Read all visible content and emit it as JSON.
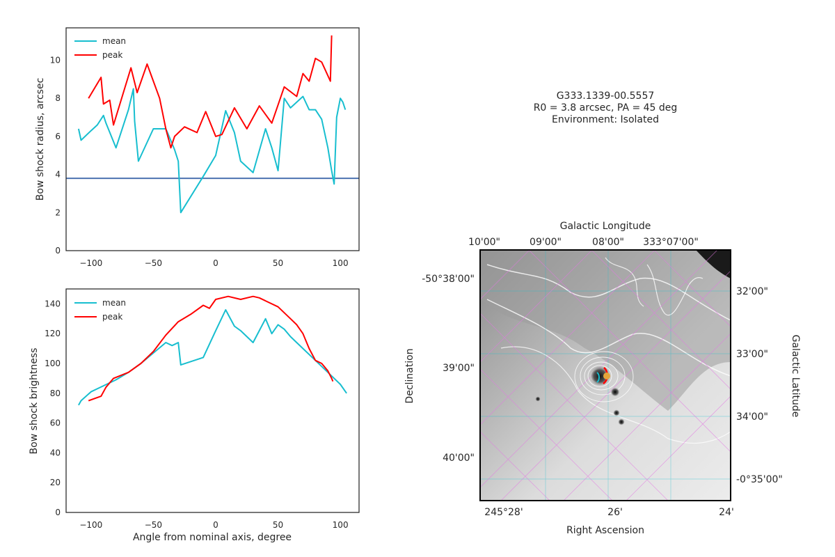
{
  "chart_data": [
    {
      "type": "line",
      "ylabel": "Bow shock radius, arcsec",
      "xlabel": "",
      "xlim": [
        -120,
        115
      ],
      "ylim": [
        0,
        11.7
      ],
      "xticks": [
        -100,
        -50,
        0,
        50,
        100
      ],
      "yticks": [
        0,
        2,
        4,
        6,
        8,
        10
      ],
      "grid": false,
      "legend": "upper left",
      "hline": {
        "y": 3.8,
        "color": "#4c72b0"
      },
      "series": [
        {
          "name": "mean",
          "color": "#17becf",
          "x": [
            -110,
            -108,
            -100,
            -95,
            -90,
            -88,
            -80,
            -70,
            -66,
            -65,
            -62,
            -50,
            -45,
            -40,
            -38,
            -33,
            -30,
            -28,
            -10,
            0,
            8,
            15,
            20,
            30,
            40,
            45,
            50,
            55,
            60,
            70,
            75,
            80,
            85,
            90,
            93,
            95,
            97,
            100,
            102,
            104
          ],
          "y": [
            6.4,
            5.8,
            6.3,
            6.6,
            7.1,
            6.7,
            5.4,
            7.4,
            8.5,
            6.8,
            4.7,
            6.4,
            6.4,
            6.4,
            6.1,
            5.3,
            4.7,
            2.0,
            3.9,
            5.0,
            7.35,
            6.2,
            4.7,
            4.1,
            6.4,
            5.4,
            4.2,
            8.0,
            7.5,
            8.1,
            7.4,
            7.4,
            6.9,
            5.4,
            4.2,
            3.5,
            7.0,
            8.0,
            7.8,
            7.4
          ]
        },
        {
          "name": "peak",
          "color": "#ff0000",
          "x": [
            -102,
            -92,
            -90,
            -85,
            -82,
            -68,
            -63,
            -55,
            -50,
            -45,
            -40,
            -36,
            -33,
            -25,
            -15,
            -8,
            0,
            5,
            15,
            25,
            35,
            45,
            55,
            65,
            70,
            75,
            80,
            85,
            92,
            93
          ],
          "y": [
            8.0,
            9.1,
            7.7,
            7.9,
            6.6,
            9.6,
            8.3,
            9.8,
            8.9,
            8.0,
            6.4,
            5.4,
            6.0,
            6.5,
            6.2,
            7.3,
            6.0,
            6.1,
            7.5,
            6.4,
            7.6,
            6.7,
            8.6,
            8.1,
            9.3,
            8.9,
            10.1,
            9.9,
            8.9,
            11.3
          ]
        }
      ]
    },
    {
      "type": "line",
      "ylabel": "Bow shock brightness",
      "xlabel": "Angle from nominal axis, degree",
      "xlim": [
        -120,
        115
      ],
      "ylim": [
        0,
        150
      ],
      "xticks": [
        -100,
        -50,
        0,
        50,
        100
      ],
      "yticks": [
        0,
        20,
        40,
        60,
        80,
        100,
        120,
        140
      ],
      "grid": false,
      "legend": "upper left",
      "series": [
        {
          "name": "mean",
          "color": "#17becf",
          "x": [
            -110,
            -108,
            -100,
            -95,
            -90,
            -80,
            -70,
            -60,
            -50,
            -40,
            -35,
            -30,
            -28,
            -10,
            0,
            8,
            15,
            20,
            30,
            40,
            45,
            50,
            55,
            60,
            70,
            80,
            90,
            100,
            105
          ],
          "y": [
            72,
            75,
            81,
            83,
            85,
            89,
            94,
            100,
            107,
            114,
            112,
            114,
            99,
            104,
            122,
            136,
            125,
            122,
            114,
            130,
            120,
            126,
            123,
            118,
            110,
            102,
            94,
            86,
            80
          ]
        },
        {
          "name": "peak",
          "color": "#ff0000",
          "x": [
            -102,
            -92,
            -88,
            -82,
            -70,
            -60,
            -50,
            -40,
            -30,
            -20,
            -10,
            -5,
            0,
            10,
            20,
            30,
            35,
            40,
            50,
            60,
            65,
            70,
            75,
            80,
            85,
            90,
            93,
            94
          ],
          "y": [
            75,
            78,
            84,
            90,
            94,
            100,
            108,
            119,
            128,
            133,
            139,
            137,
            143,
            145,
            143,
            145,
            144,
            142,
            138,
            130,
            126,
            120,
            110,
            102,
            100,
            95,
            90,
            88
          ]
        }
      ]
    }
  ],
  "sky_panel": {
    "title_line1": "G333.1339-00.5557",
    "title_line2": "R0 = 3.8 arcsec, PA = 45 deg",
    "title_line3": "Environment: Isolated",
    "bottom_axis_label": "Right Ascension",
    "left_axis_label": "Declination",
    "top_axis_label": "Galactic Longitude",
    "right_axis_label": "Galactic Latitude",
    "bottom_ticks": [
      "245°28'",
      "26'",
      "24'"
    ],
    "left_ticks": [
      "-50°38'00\"",
      "39'00\"",
      "40'00\""
    ],
    "top_ticks": [
      "10'00\"",
      "09'00\"",
      "08'00\"",
      "333°07'00\""
    ],
    "right_ticks": [
      "32'00\"",
      "33'00\"",
      "34'00\"",
      "-0°35'00\""
    ]
  }
}
